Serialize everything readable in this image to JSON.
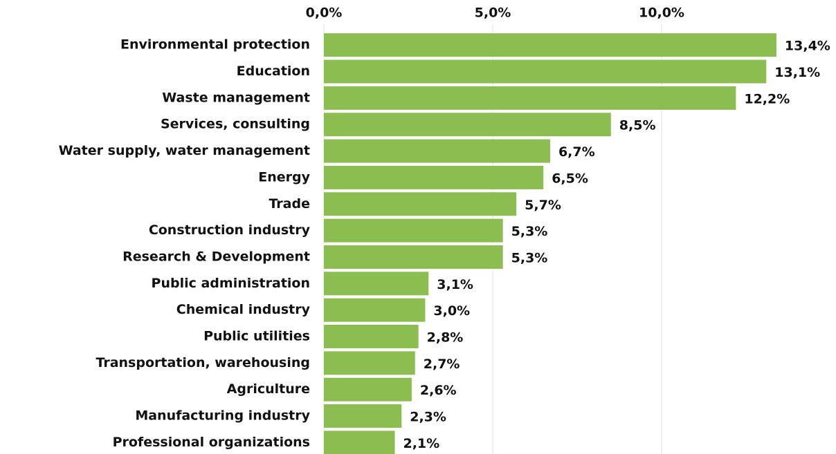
{
  "chart_data": {
    "type": "barh",
    "categories": [
      "Environmental protection",
      "Education",
      "Waste management",
      "Services, consulting",
      "Water supply, water management",
      "Energy",
      "Trade",
      "Construction industry",
      "Research & Development",
      "Public administration",
      "Chemical industry",
      "Public utilities",
      "Transportation, warehousing",
      "Agriculture",
      "Manufacturing industry",
      "Professional organizations"
    ],
    "values": [
      13.4,
      13.1,
      12.2,
      8.5,
      6.7,
      6.5,
      5.7,
      5.3,
      5.3,
      3.1,
      3.0,
      2.8,
      2.7,
      2.6,
      2.3,
      2.1
    ],
    "value_labels": [
      "13,4%",
      "13,1%",
      "12,2%",
      "8,5%",
      "6,7%",
      "6,5%",
      "5,7%",
      "5,3%",
      "5,3%",
      "3,1%",
      "3,0%",
      "2,8%",
      "2,7%",
      "2,6%",
      "2,3%",
      "2,1%"
    ],
    "color": "#8bbd50",
    "xlim": [
      0,
      15
    ],
    "xticks": [
      {
        "value": 0,
        "label": "0,0%"
      },
      {
        "value": 5,
        "label": "5,0%"
      },
      {
        "value": 10,
        "label": "10,0%"
      }
    ],
    "grid": true
  }
}
